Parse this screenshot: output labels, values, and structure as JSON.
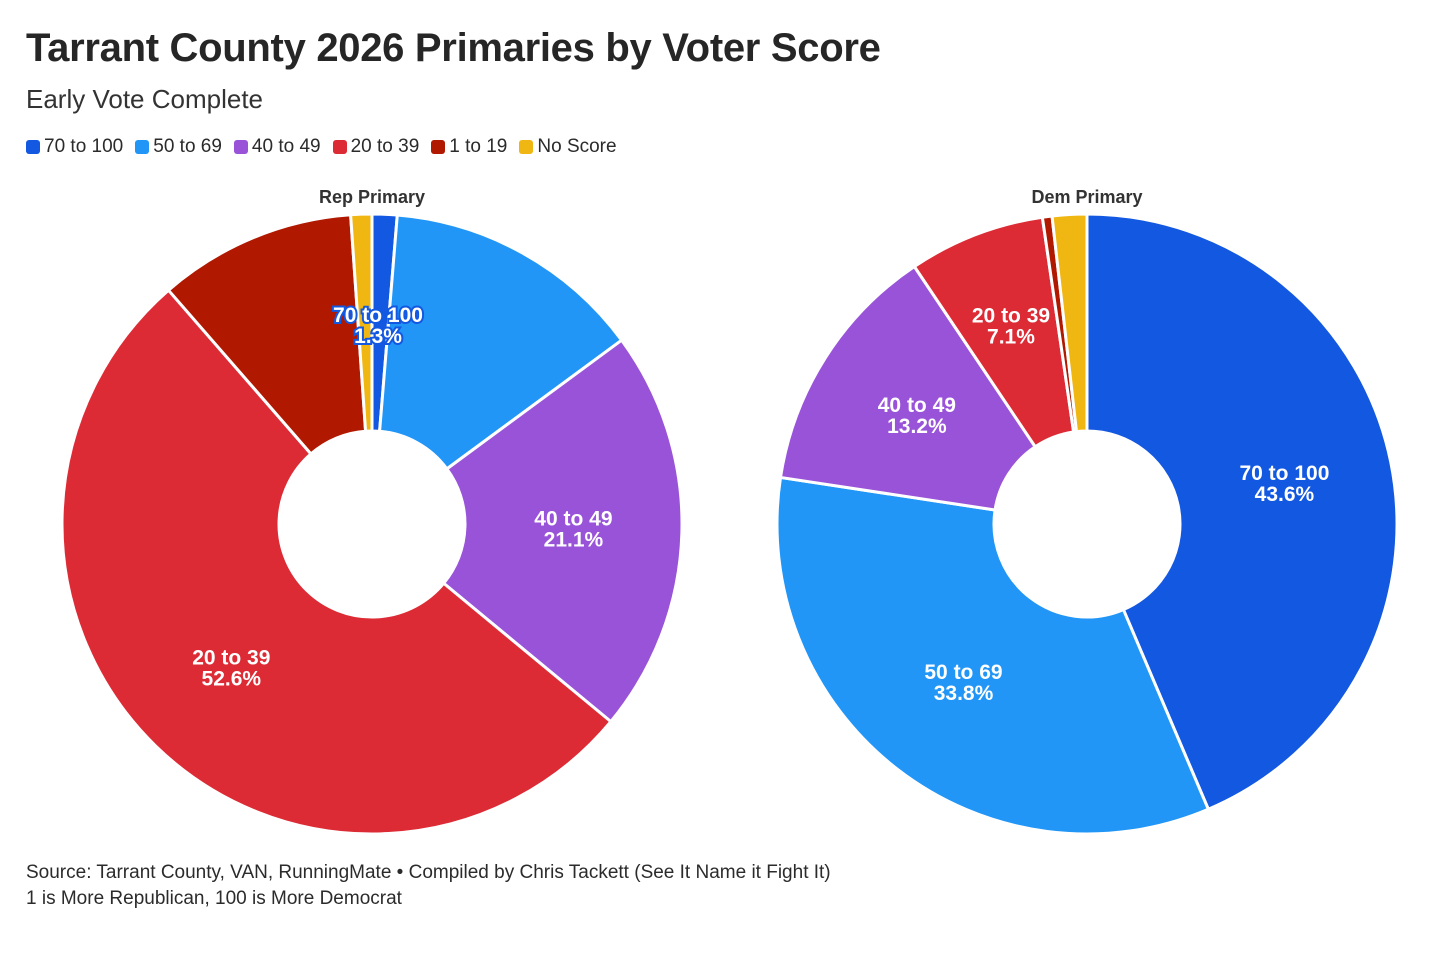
{
  "title": "Tarrant County 2026 Primaries by Voter Score",
  "subtitle": "Early Vote Complete",
  "footer": {
    "source": "Source: Tarrant County, VAN, RunningMate • Compiled by Chris Tackett (See It Name it Fight It)",
    "note": "1 is More Republican, 100 is More Democrat"
  },
  "legend": [
    {
      "label": "70 to 100",
      "color": "#1358e0"
    },
    {
      "label": "50 to 69",
      "color": "#2196f7"
    },
    {
      "label": "40 to 49",
      "color": "#9953d9"
    },
    {
      "label": "20 to 39",
      "color": "#dc2b35"
    },
    {
      "label": "1 to 19",
      "color": "#b01800"
    },
    {
      "label": "No Score",
      "color": "#f0b612"
    }
  ],
  "chart_data": [
    {
      "type": "pie",
      "title": "Rep Primary",
      "categories": [
        "70 to 100",
        "50 to 69",
        "40 to 49",
        "20 to 39",
        "1 to 19",
        "No Score"
      ],
      "values": [
        1.3,
        13.6,
        21.1,
        52.6,
        10.3,
        1.1
      ],
      "labels": [
        {
          "category": "70 to 100",
          "name": "70 to 100",
          "value": "1.3%"
        },
        {
          "category": "40 to 49",
          "name": "40 to 49",
          "value": "21.1%"
        },
        {
          "category": "20 to 39",
          "name": "20 to 39",
          "value": "52.6%"
        }
      ]
    },
    {
      "type": "pie",
      "title": "Dem Primary",
      "categories": [
        "70 to 100",
        "50 to 69",
        "40 to 49",
        "20 to 39",
        "1 to 19",
        "No Score"
      ],
      "values": [
        43.6,
        33.8,
        13.2,
        7.1,
        0.5,
        1.8
      ],
      "labels": [
        {
          "category": "70 to 100",
          "name": "70 to 100",
          "value": "43.6%"
        },
        {
          "category": "50 to 69",
          "name": "50 to 69",
          "value": "33.8%"
        },
        {
          "category": "40 to 49",
          "name": "40 to 49",
          "value": "13.2%"
        },
        {
          "category": "20 to 39",
          "name": "20 to 39",
          "value": "7.1%"
        }
      ]
    }
  ]
}
